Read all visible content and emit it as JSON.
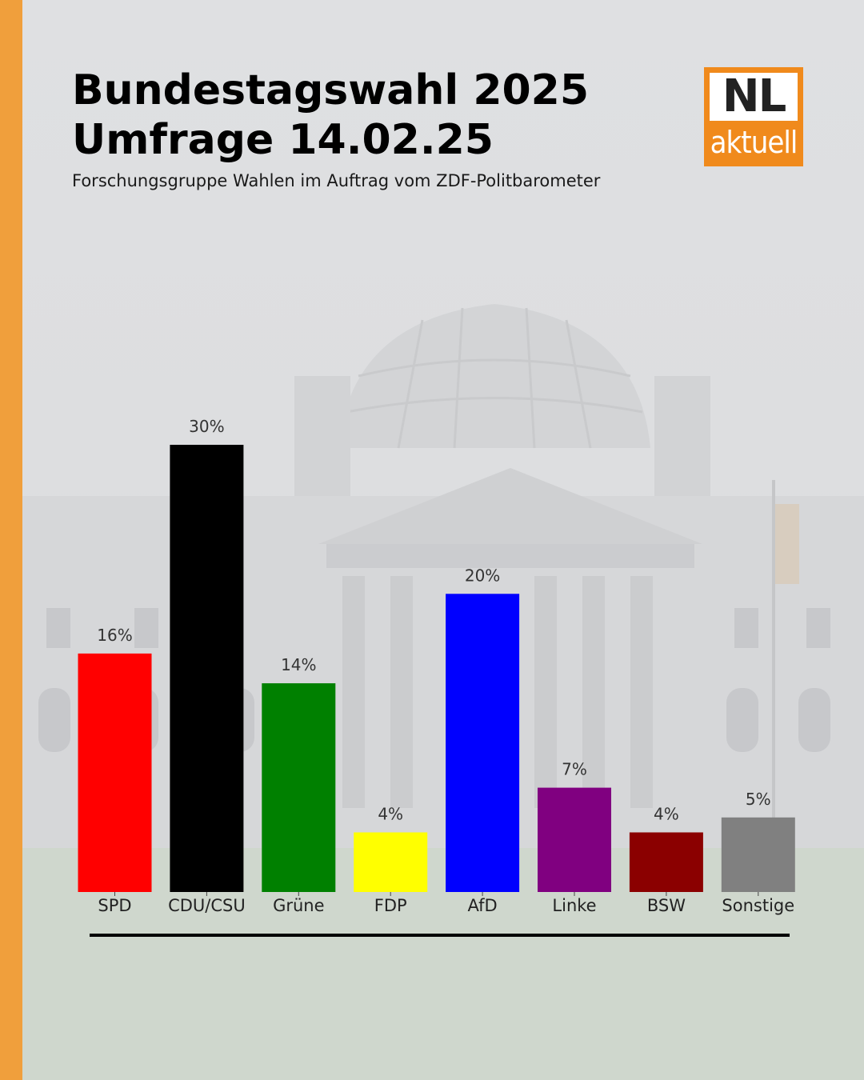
{
  "header": {
    "title_line1": "Bundestagswahl 2025",
    "title_line2": "Umfrage 14.02.25",
    "subtitle": "Forschungsgruppe Wahlen im Auftrag vom ZDF-Politbarometer"
  },
  "logo": {
    "top_text": "NL",
    "bottom_text": "aktuell"
  },
  "colors": {
    "accent": "#f09f3c",
    "logo_orange": "#f08a1c"
  },
  "chart_data": {
    "type": "bar",
    "categories": [
      "SPD",
      "CDU/CSU",
      "Grüne",
      "FDP",
      "AfD",
      "Linke",
      "BSW",
      "Sonstige"
    ],
    "values": [
      16,
      30,
      14,
      4,
      20,
      7,
      4,
      5
    ],
    "value_labels": [
      "16%",
      "30%",
      "14%",
      "4%",
      "20%",
      "7%",
      "4%",
      "5%"
    ],
    "colors": [
      "#ff0000",
      "#000000",
      "#008000",
      "#ffff00",
      "#0000ff",
      "#800080",
      "#8b0000",
      "#808080"
    ],
    "unit": "%",
    "ylim": [
      0,
      30
    ],
    "grid": false,
    "legend": "none"
  }
}
